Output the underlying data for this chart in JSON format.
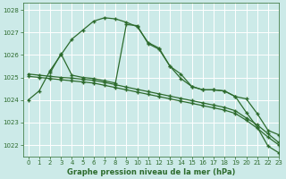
{
  "title": "Graphe pression niveau de la mer (hPa)",
  "bg_color": "#cceae8",
  "grid_color": "#ffffff",
  "line_color": "#2d6b2d",
  "xlim": [
    -0.5,
    23
  ],
  "ylim": [
    1021.5,
    1028.3
  ],
  "yticks": [
    1022,
    1023,
    1024,
    1025,
    1026,
    1027,
    1028
  ],
  "xticks": [
    0,
    1,
    2,
    3,
    4,
    5,
    6,
    7,
    8,
    9,
    10,
    11,
    12,
    13,
    14,
    15,
    16,
    17,
    18,
    19,
    20,
    21,
    22,
    23
  ],
  "series1_x": [
    0,
    1,
    2,
    3,
    4,
    5,
    6,
    7,
    8,
    9,
    10,
    11,
    12,
    13,
    14,
    15,
    16,
    17,
    18,
    19,
    20,
    21,
    22,
    23
  ],
  "series1_y": [
    1024.0,
    1024.4,
    1025.3,
    1026.0,
    1026.7,
    1027.1,
    1027.5,
    1027.65,
    1027.6,
    1027.45,
    1027.25,
    1026.55,
    1026.3,
    1025.5,
    1024.95,
    1024.6,
    1024.45,
    1024.45,
    1024.4,
    1024.15,
    1023.45,
    1022.8,
    1021.95,
    1021.65
  ],
  "series2_x": [
    2,
    3,
    4,
    5,
    6,
    7,
    8,
    9,
    10,
    11,
    12,
    13,
    14,
    15,
    16,
    17,
    18,
    19,
    20,
    21,
    22,
    23
  ],
  "series2_y": [
    1025.2,
    1026.05,
    1025.1,
    1025.0,
    1024.95,
    1024.85,
    1024.75,
    1027.35,
    1027.3,
    1026.5,
    1026.25,
    1025.5,
    1025.15,
    1024.6,
    1024.45,
    1024.45,
    1024.4,
    1024.15,
    1024.05,
    1023.4,
    1022.65,
    1022.45
  ],
  "series3_x": [
    0,
    1,
    2,
    3,
    4,
    5,
    6,
    7,
    8,
    9,
    10,
    11,
    12,
    13,
    14,
    15,
    16,
    17,
    18,
    19,
    20,
    21,
    22,
    23
  ],
  "series3_y": [
    1025.05,
    1025.0,
    1024.95,
    1024.9,
    1024.85,
    1024.8,
    1024.75,
    1024.65,
    1024.55,
    1024.45,
    1024.35,
    1024.25,
    1024.15,
    1024.05,
    1023.95,
    1023.85,
    1023.75,
    1023.65,
    1023.55,
    1023.4,
    1023.1,
    1022.75,
    1022.35,
    1022.0
  ],
  "series4_x": [
    0,
    1,
    2,
    3,
    4,
    5,
    6,
    7,
    8,
    9,
    10,
    11,
    12,
    13,
    14,
    15,
    16,
    17,
    18,
    19,
    20,
    21,
    22,
    23
  ],
  "series4_y": [
    1025.15,
    1025.1,
    1025.05,
    1025.0,
    1024.97,
    1024.92,
    1024.87,
    1024.78,
    1024.68,
    1024.57,
    1024.47,
    1024.37,
    1024.27,
    1024.17,
    1024.07,
    1023.97,
    1023.87,
    1023.77,
    1023.67,
    1023.52,
    1023.2,
    1022.9,
    1022.5,
    1022.1
  ]
}
